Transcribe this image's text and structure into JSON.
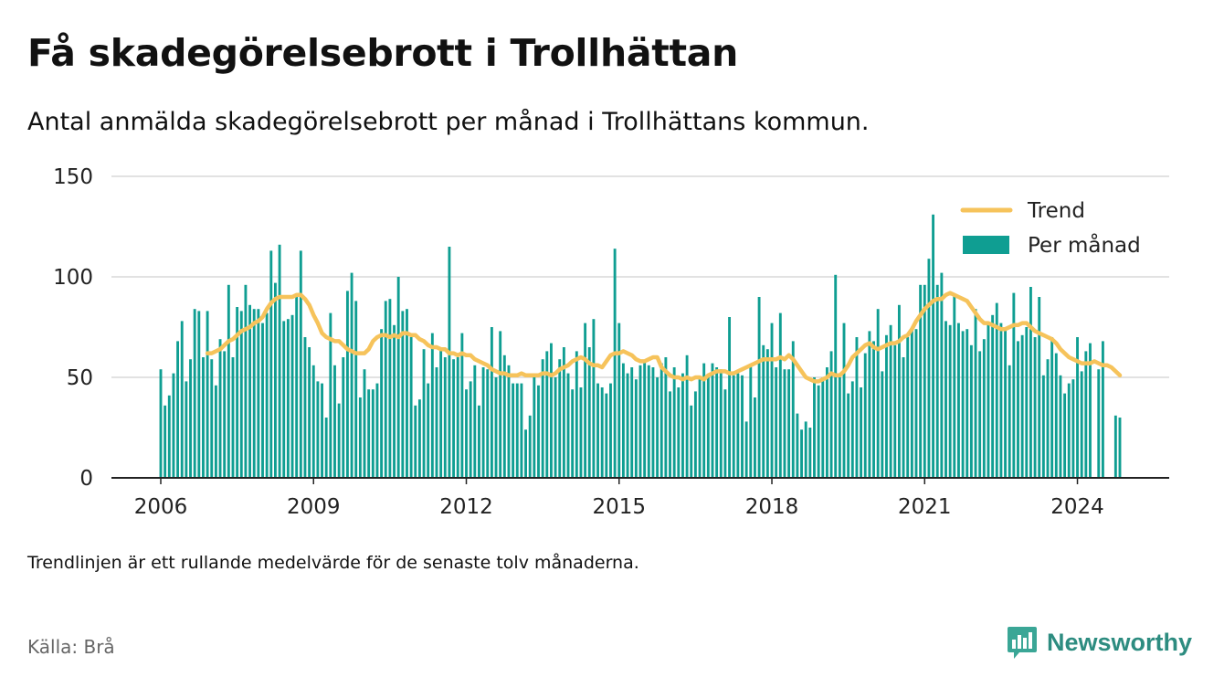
{
  "title": "Få skadegörelsebrott i Trollhättan",
  "subtitle": "Antal anmälda skadegörelsebrott per månad i Trollhättans kommun.",
  "note": "Trendlinjen är ett rullande medelvärde för de senaste tolv månaderna.",
  "source": "Källa: Brå",
  "brand": "Newsworthy",
  "colors": {
    "bar": "#0f9e92",
    "trend": "#f6c35b",
    "grid": "#d9d9d9",
    "axis": "#222222"
  },
  "chart_data": {
    "type": "bar",
    "x_start": "2006-01",
    "ylim": [
      0,
      150
    ],
    "yticks": [
      0,
      50,
      100,
      150
    ],
    "xticks": [
      "2006",
      "2009",
      "2012",
      "2015",
      "2018",
      "2021",
      "2024"
    ],
    "grid": true,
    "legend_position": "top-right",
    "series": [
      {
        "name": "Per månad",
        "kind": "bar",
        "values": [
          54,
          36,
          41,
          52,
          68,
          78,
          48,
          59,
          84,
          83,
          60,
          83,
          59,
          46,
          69,
          63,
          96,
          60,
          85,
          83,
          96,
          86,
          84,
          84,
          77,
          82,
          113,
          97,
          116,
          78,
          79,
          81,
          90,
          113,
          70,
          65,
          56,
          48,
          47,
          30,
          82,
          56,
          37,
          60,
          93,
          102,
          88,
          40,
          54,
          44,
          44,
          47,
          74,
          88,
          89,
          76,
          100,
          83,
          84,
          70,
          36,
          39,
          64,
          47,
          72,
          55,
          64,
          60,
          115,
          59,
          60,
          72,
          44,
          48,
          56,
          36,
          55,
          54,
          75,
          50,
          73,
          61,
          56,
          47,
          47,
          47,
          24,
          31,
          52,
          46,
          59,
          63,
          67,
          50,
          59,
          65,
          52,
          44,
          63,
          45,
          77,
          65,
          79,
          47,
          45,
          42,
          47,
          114,
          77,
          57,
          52,
          55,
          49,
          56,
          58,
          56,
          55,
          50,
          57,
          60,
          43,
          55,
          45,
          52,
          61,
          36,
          43,
          49,
          57,
          51,
          57,
          55,
          54,
          44,
          80,
          51,
          52,
          51,
          28,
          56,
          40,
          90,
          66,
          64,
          77,
          55,
          82,
          54,
          54,
          68,
          32,
          24,
          28,
          25,
          50,
          46,
          50,
          55,
          63,
          101,
          50,
          77,
          42,
          48,
          70,
          45,
          62,
          73,
          68,
          84,
          53,
          71,
          76,
          66,
          86,
          60,
          70,
          74,
          74,
          96,
          96,
          109,
          131,
          96,
          102,
          78,
          76,
          91,
          77,
          73,
          74,
          66,
          84,
          63,
          69,
          77,
          81,
          87,
          77,
          74,
          56,
          92,
          68,
          71,
          75,
          95,
          70,
          90,
          51,
          59,
          70,
          62,
          51,
          42,
          47,
          49,
          70,
          53,
          63,
          67,
          0,
          54,
          68,
          0,
          0,
          31,
          30
        ]
      },
      {
        "name": "Trend",
        "kind": "line",
        "values": [
          null,
          null,
          null,
          null,
          null,
          null,
          null,
          null,
          null,
          null,
          null,
          62,
          62,
          63,
          64,
          66,
          68,
          69,
          71,
          73,
          74,
          75,
          77,
          78,
          80,
          84,
          87,
          89,
          90,
          90,
          90,
          90,
          91,
          91,
          89,
          86,
          81,
          77,
          72,
          70,
          69,
          68,
          68,
          66,
          64,
          63,
          62,
          62,
          62,
          64,
          68,
          70,
          71,
          71,
          70,
          71,
          70,
          72,
          72,
          71,
          71,
          69,
          68,
          66,
          65,
          65,
          64,
          64,
          62,
          62,
          61,
          62,
          61,
          61,
          59,
          58,
          57,
          56,
          54,
          53,
          52,
          52,
          51,
          51,
          51,
          52,
          51,
          51,
          51,
          51,
          52,
          52,
          51,
          52,
          54,
          55,
          56,
          58,
          59,
          60,
          59,
          57,
          56,
          56,
          55,
          58,
          61,
          62,
          62,
          63,
          62,
          61,
          59,
          58,
          58,
          59,
          60,
          60,
          55,
          53,
          51,
          50,
          50,
          49,
          50,
          49,
          50,
          50,
          49,
          51,
          52,
          53,
          53,
          53,
          52,
          52,
          53,
          54,
          55,
          56,
          57,
          58,
          59,
          59,
          59,
          59,
          60,
          59,
          61,
          59,
          56,
          53,
          50,
          49,
          48,
          48,
          49,
          50,
          52,
          51,
          51,
          53,
          56,
          60,
          62,
          64,
          66,
          67,
          65,
          64,
          65,
          66,
          67,
          67,
          68,
          70,
          71,
          74,
          78,
          81,
          84,
          86,
          88,
          89,
          89,
          91,
          92,
          91,
          90,
          89,
          88,
          85,
          82,
          79,
          77,
          77,
          76,
          75,
          74,
          74,
          75,
          76,
          76,
          77,
          77,
          75,
          73,
          72,
          71,
          70,
          69,
          67,
          64,
          62,
          60,
          59,
          58,
          57,
          57,
          57,
          58,
          57,
          56,
          56,
          55,
          53,
          51
        ]
      }
    ]
  }
}
